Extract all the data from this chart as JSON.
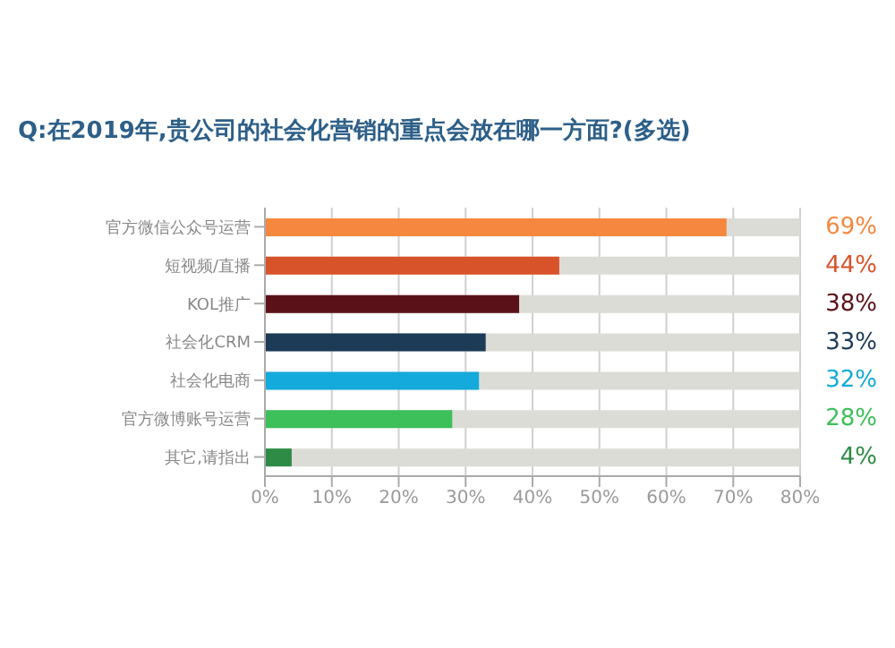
{
  "chart_data": {
    "type": "bar",
    "orientation": "horizontal",
    "title": "Q:在2019年,贵公司的社会化营销的重点会放在哪一方面?(多选)",
    "categories": [
      "官方微信公众号运营",
      "短视频/直播",
      "KOL推广",
      "社会化CRM",
      "社会化电商",
      "官方微博账号运营",
      "其它,请指出"
    ],
    "values": [
      69,
      44,
      38,
      33,
      32,
      28,
      4
    ],
    "colors": [
      "#f5873e",
      "#d9532a",
      "#5a1218",
      "#1d3a57",
      "#14aadb",
      "#3dbf5a",
      "#2e8b45"
    ],
    "value_labels": [
      "69%",
      "44%",
      "38%",
      "33%",
      "32%",
      "28%",
      "4%"
    ],
    "xlim": [
      0,
      80
    ],
    "xticks": [
      {
        "value": 0,
        "label": "0%"
      },
      {
        "value": 10,
        "label": "10%"
      },
      {
        "value": 20,
        "label": "20%"
      },
      {
        "value": 30,
        "label": "30%"
      },
      {
        "value": 40,
        "label": "40%"
      },
      {
        "value": 50,
        "label": "50%"
      },
      {
        "value": 60,
        "label": "60%"
      },
      {
        "value": 70,
        "label": "70%"
      },
      {
        "value": 80,
        "label": "80%"
      }
    ],
    "grid": "x"
  }
}
